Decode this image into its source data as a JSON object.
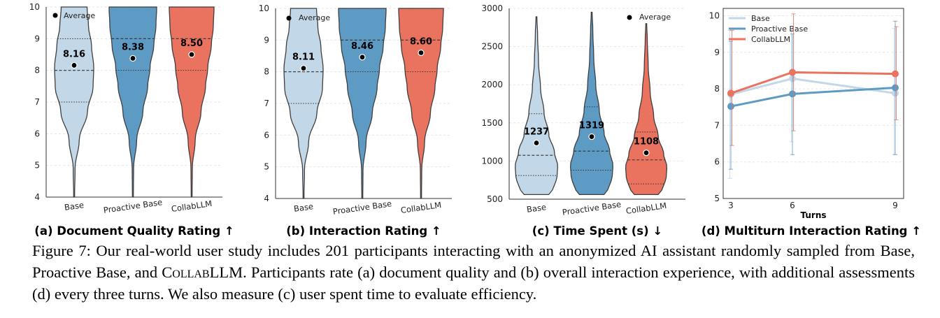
{
  "chart_data": [
    {
      "type": "violin",
      "title": "(a) Document Quality Rating ↑",
      "ylim": [
        4,
        10
      ],
      "yticks": [
        "4",
        "5",
        "6",
        "7",
        "8",
        "9",
        "10"
      ],
      "legend": "Average",
      "legend_position": "top-left",
      "categories": [
        "Base",
        "Proactive Base",
        "CollabLLM"
      ],
      "means": [
        8.16,
        8.38,
        8.5
      ],
      "mean_labels": [
        "8.16",
        "8.38",
        "8.50"
      ],
      "medians": [
        8,
        9,
        9
      ],
      "quartiles": [
        [
          7,
          9
        ],
        [
          8,
          10
        ],
        [
          8,
          10
        ]
      ],
      "range": [
        [
          4,
          10
        ],
        [
          4,
          10
        ],
        [
          4,
          10
        ]
      ]
    },
    {
      "type": "violin",
      "title": "(b) Interaction Rating ↑",
      "ylim": [
        4,
        10
      ],
      "yticks": [
        "4",
        "5",
        "6",
        "7",
        "8",
        "9",
        "10"
      ],
      "legend": "Average",
      "legend_position": "top-left",
      "categories": [
        "Base",
        "Proactive Base",
        "CollabLLM"
      ],
      "means": [
        8.11,
        8.46,
        8.6
      ],
      "mean_labels": [
        "8.11",
        "8.46",
        "8.60"
      ],
      "medians": [
        8,
        9,
        9
      ],
      "quartiles": [
        [
          7,
          10
        ],
        [
          8,
          10
        ],
        [
          8,
          10
        ]
      ],
      "range": [
        [
          4,
          10
        ],
        [
          4,
          10
        ],
        [
          4,
          10
        ]
      ]
    },
    {
      "type": "violin",
      "title": "(c) Time Spent (s) ↓",
      "ylim": [
        500,
        3000
      ],
      "yticks": [
        "500",
        "1000",
        "1500",
        "2000",
        "2500",
        "3000"
      ],
      "legend": "Average",
      "legend_position": "top-right",
      "categories": [
        "Base",
        "Proactive Base",
        "CollabLLM"
      ],
      "means": [
        1237,
        1319,
        1108
      ],
      "mean_labels": [
        "1237",
        "1319",
        "1108"
      ],
      "medians": [
        1075,
        1130,
        1015
      ],
      "quartiles": [
        [
          810,
          1620
        ],
        [
          880,
          1710
        ],
        [
          700,
          1380
        ]
      ],
      "range": [
        [
          560,
          2890
        ],
        [
          560,
          2950
        ],
        [
          560,
          2800
        ]
      ]
    },
    {
      "type": "line",
      "title": "(d) Multiturn Interaction Rating ↑",
      "xlabel": "Turns",
      "ylim": [
        5,
        10.2
      ],
      "x": [
        3,
        6,
        9
      ],
      "xticks": [
        "3",
        "6",
        "9"
      ],
      "yticks": [
        "5",
        "6",
        "7",
        "8",
        "9",
        "10"
      ],
      "legend_position": "top-left",
      "series": [
        {
          "name": "Base",
          "values": [
            7.85,
            8.28,
            7.88
          ],
          "err_low": [
            5.55,
            6.55,
            6.2
          ],
          "err_high": [
            9.6,
            9.6,
            9.65
          ]
        },
        {
          "name": "Proactive Base",
          "values": [
            7.52,
            7.86,
            8.03
          ],
          "err_low": [
            5.8,
            6.2,
            6.2
          ],
          "err_high": [
            9.3,
            9.5,
            9.85
          ]
        },
        {
          "name": "CollabLLM",
          "values": [
            7.88,
            8.45,
            8.41
          ],
          "err_low": [
            6.45,
            6.85,
            7.15
          ],
          "err_high": [
            9.6,
            10.05,
            9.7
          ]
        }
      ]
    }
  ],
  "colors": {
    "base": "#c2d7e8",
    "proactive": "#5e9bc4",
    "collab": "#e9735e",
    "outline": "#3f3f3f"
  },
  "caption": {
    "part1": "Figure 7: Our real-world user study includes 201 participants interacting with an anonymized AI assistant randomly sampled from Base, Proactive Base, and ",
    "collab_name": "CollabLLM",
    "part2": ". Participants rate (a) document quality and (b) overall interaction experience, with additional assessments (d) every three turns. We also measure (c) user spent time to evaluate efficiency."
  }
}
